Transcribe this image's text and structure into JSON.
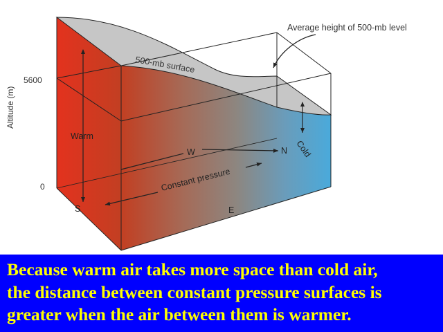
{
  "diagram": {
    "axis_label": "Altitude (m)",
    "tick_top": "5600",
    "tick_bottom": "0",
    "label_average_height": "Average height of 500-mb level",
    "label_surface": "500-mb surface",
    "label_warm": "Warm",
    "label_cold": "Cold",
    "label_w": "W",
    "label_n": "N",
    "label_s": "S",
    "label_e": "E",
    "label_constant_pressure": "Constant pressure",
    "colors": {
      "warm": "#e3321e",
      "cold": "#4aaadb",
      "surface": "#c6c6c6",
      "caption_background": "#0000ff",
      "caption_text": "#ffff00"
    }
  },
  "caption": {
    "lines": [
      "Because warm air takes more space than cold air,",
      "the distance between constant pressure surfaces is",
      "greater when the air between them is warmer."
    ]
  }
}
